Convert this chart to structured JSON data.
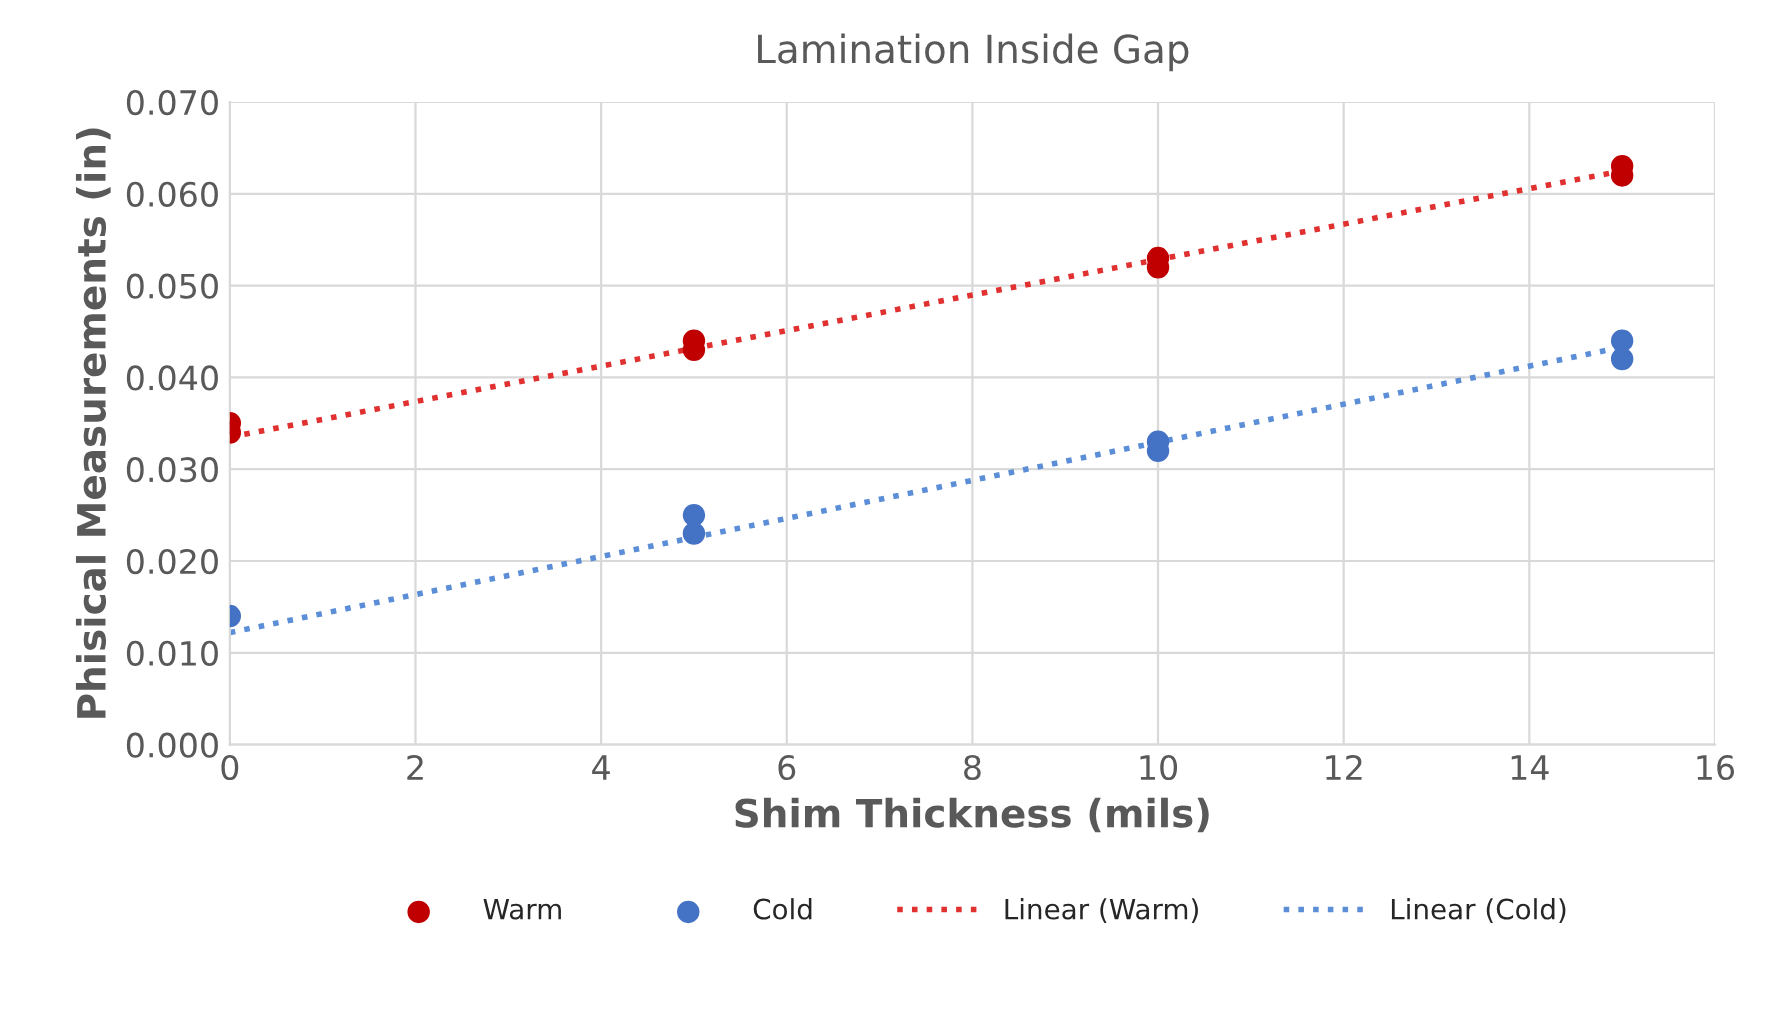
{
  "chart_data": {
    "type": "scatter",
    "title": "Lamination Inside Gap",
    "xlabel": "Shim Thickness (mils)",
    "ylabel": "Phisical Measurements (in)",
    "series": [
      {
        "name": "Warm",
        "color": "#c00000",
        "marker": "circle",
        "x": [
          0,
          0,
          5,
          5,
          10,
          10,
          15,
          15
        ],
        "values": [
          0.034,
          0.035,
          0.043,
          0.044,
          0.052,
          0.053,
          0.062,
          0.063
        ]
      },
      {
        "name": "Cold",
        "color": "#4472c4",
        "marker": "circle",
        "x": [
          0,
          5,
          5,
          10,
          10,
          15,
          15
        ],
        "values": [
          0.014,
          0.023,
          0.025,
          0.032,
          0.033,
          0.042,
          0.044
        ]
      },
      {
        "name": "Linear (Warm)",
        "type": "line",
        "color": "#e0302f",
        "line_style": "dotted",
        "marker": "none",
        "x": [
          0,
          15
        ],
        "values": [
          0.0335,
          0.0625
        ]
      },
      {
        "name": "Linear (Cold)",
        "type": "line",
        "color": "#5b8ed6",
        "line_style": "dotted",
        "marker": "none",
        "x": [
          0,
          15
        ],
        "values": [
          0.0122,
          0.0433
        ]
      }
    ],
    "xlim": [
      0,
      16
    ],
    "xticks": [
      0,
      2,
      4,
      6,
      8,
      10,
      12,
      14,
      16
    ],
    "ylim": [
      0,
      0.07
    ],
    "yticks": [
      {
        "value": 0,
        "label": "0.000"
      },
      {
        "value": 0.01,
        "label": "0.010"
      },
      {
        "value": 0.02,
        "label": "0.020"
      },
      {
        "value": 0.03,
        "label": "0.030"
      },
      {
        "value": 0.04,
        "label": "0.040"
      },
      {
        "value": 0.05,
        "label": "0.050"
      },
      {
        "value": 0.06,
        "label": "0.060"
      },
      {
        "value": 0.07,
        "label": "0.070"
      }
    ],
    "grid": true,
    "legend": "bottom"
  }
}
